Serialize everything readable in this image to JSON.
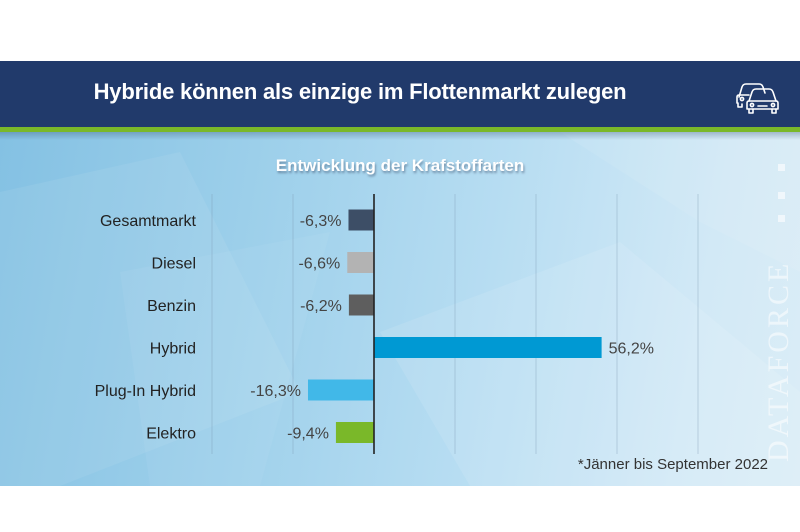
{
  "header": {
    "title": "Hybride können als einzige im Flottenmarkt zulegen",
    "icon": "cars-icon"
  },
  "watermark": "DATAFORCE",
  "footnote": "*Jänner bis September 2022",
  "colors": {
    "banner": "#213a6b",
    "accent_line": "#7ab829"
  },
  "chart_data": {
    "type": "bar",
    "orientation": "horizontal",
    "title": "Entwicklung der Krafstoffarten",
    "xlabel": "",
    "ylabel": "",
    "xlim": [
      -40,
      80
    ],
    "grid": true,
    "grid_step": 20,
    "categories": [
      "Gesamtmarkt",
      "Diesel",
      "Benzin",
      "Hybrid",
      "Plug-In Hybrid",
      "Elektro"
    ],
    "values": [
      -6.3,
      -6.6,
      -6.2,
      56.2,
      -16.3,
      -9.4
    ],
    "value_labels": [
      "-6,3%",
      "-6,6%",
      "-6,2%",
      "56,2%",
      "-16,3%",
      "-9,4%"
    ],
    "bar_colors": [
      "#3d4e66",
      "#b3b3b3",
      "#5e5e5e",
      "#0099d3",
      "#41b8e8",
      "#7ab829"
    ],
    "unit": "%"
  }
}
